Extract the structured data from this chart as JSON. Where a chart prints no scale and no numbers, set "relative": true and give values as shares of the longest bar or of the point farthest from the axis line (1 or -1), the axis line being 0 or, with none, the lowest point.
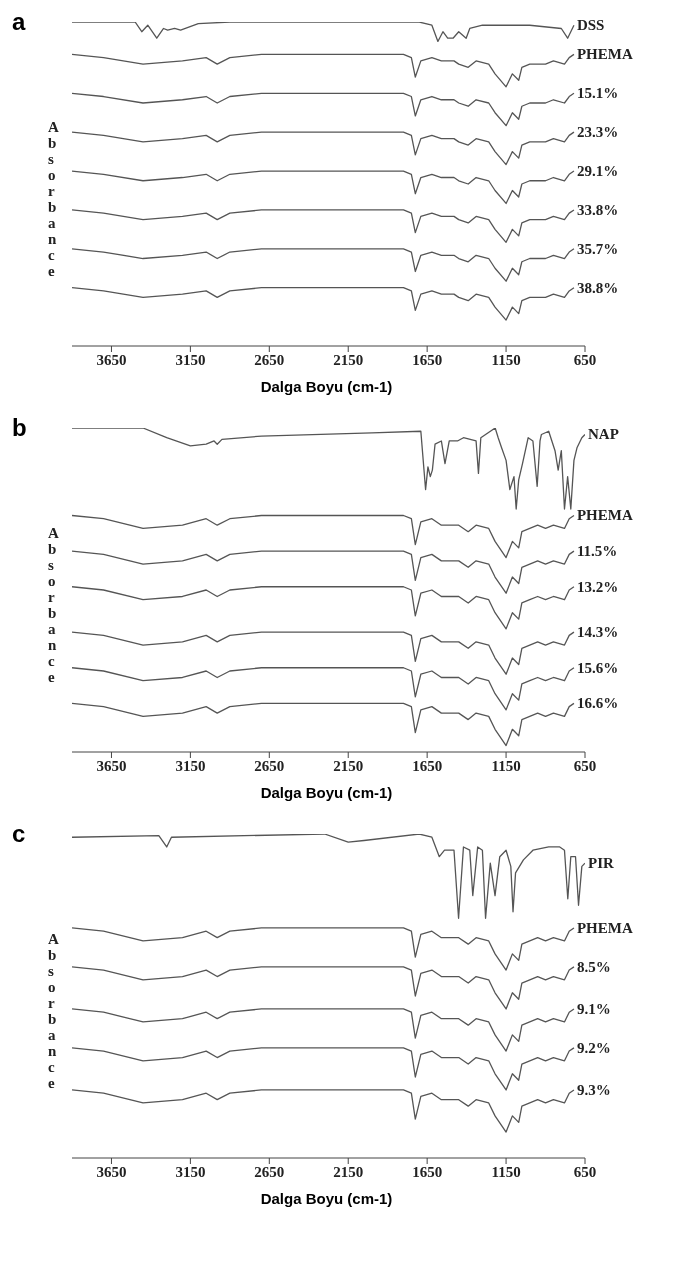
{
  "chart_data": [
    {
      "type": "line",
      "title": "a",
      "xlabel": "Dalga Boyu (cm-1)",
      "ylabel": "Absorbance",
      "relative": true,
      "xlim": [
        3900,
        650
      ],
      "xticks": [
        3650,
        3150,
        2650,
        2150,
        1650,
        1150,
        650
      ],
      "series": [
        {
          "name": "DSS",
          "color": "#555555",
          "x": [
            3900,
            3500,
            3458,
            3420,
            3363,
            3320,
            3294,
            3250,
            3212,
            3100,
            2900,
            1700,
            1620,
            1582,
            1550,
            1520,
            1486,
            1450,
            1403,
            1380,
            1300,
            1000,
            800,
            760,
            740,
            720
          ],
          "values": [
            1,
            1,
            0.97,
            0.99,
            0.95,
            0.98,
            0.975,
            0.98,
            0.975,
            0.995,
            1,
            1,
            0.99,
            0.94,
            0.97,
            0.95,
            0.95,
            0.97,
            0.95,
            0.98,
            0.99,
            0.99,
            0.98,
            0.95,
            0.97,
            0.99
          ]
        },
        {
          "name": "PHEMA",
          "color": "#555555",
          "x": [
            3900,
            3700,
            3450,
            3200,
            3050,
            2980,
            2900,
            2700,
            2200,
            1800,
            1750,
            1725,
            1690,
            1620,
            1560,
            1480,
            1450,
            1390,
            1340,
            1260,
            1220,
            1150,
            1110,
            1070,
            1050,
            1000,
            950,
            900,
            850,
            780,
            750,
            720
          ],
          "values": [
            0.9,
            0.89,
            0.87,
            0.88,
            0.89,
            0.87,
            0.89,
            0.9,
            0.9,
            0.9,
            0.89,
            0.83,
            0.88,
            0.89,
            0.88,
            0.88,
            0.87,
            0.86,
            0.88,
            0.87,
            0.84,
            0.8,
            0.84,
            0.82,
            0.86,
            0.87,
            0.87,
            0.87,
            0.88,
            0.87,
            0.89,
            0.9
          ]
        },
        {
          "name": "15.1%",
          "color": "#555555",
          "x": [
            3900,
            3700,
            3450,
            3200,
            3050,
            2980,
            2900,
            2700,
            2200,
            1800,
            1750,
            1725,
            1690,
            1620,
            1560,
            1480,
            1450,
            1390,
            1340,
            1260,
            1220,
            1150,
            1110,
            1070,
            1050,
            1000,
            950,
            900,
            850,
            780,
            750,
            720
          ],
          "values": [
            0.78,
            0.77,
            0.75,
            0.76,
            0.77,
            0.75,
            0.77,
            0.78,
            0.78,
            0.78,
            0.77,
            0.71,
            0.76,
            0.77,
            0.76,
            0.76,
            0.75,
            0.74,
            0.76,
            0.75,
            0.72,
            0.68,
            0.72,
            0.7,
            0.74,
            0.75,
            0.75,
            0.75,
            0.76,
            0.75,
            0.77,
            0.78
          ]
        },
        {
          "name": "23.3%",
          "color": "#555555",
          "x": [
            3900,
            3700,
            3450,
            3200,
            3050,
            2980,
            2900,
            2700,
            2200,
            1800,
            1750,
            1725,
            1690,
            1620,
            1560,
            1480,
            1450,
            1390,
            1340,
            1260,
            1220,
            1150,
            1110,
            1070,
            1050,
            1000,
            950,
            900,
            850,
            780,
            750,
            720
          ],
          "values": [
            0.66,
            0.65,
            0.63,
            0.64,
            0.65,
            0.63,
            0.65,
            0.66,
            0.66,
            0.66,
            0.65,
            0.59,
            0.64,
            0.65,
            0.64,
            0.64,
            0.63,
            0.62,
            0.64,
            0.63,
            0.6,
            0.56,
            0.6,
            0.58,
            0.62,
            0.63,
            0.63,
            0.63,
            0.64,
            0.63,
            0.65,
            0.66
          ]
        },
        {
          "name": "29.1%",
          "color": "#555555",
          "x": [
            3900,
            3700,
            3450,
            3200,
            3050,
            2980,
            2900,
            2700,
            2200,
            1800,
            1750,
            1725,
            1690,
            1620,
            1560,
            1480,
            1450,
            1390,
            1340,
            1260,
            1220,
            1150,
            1110,
            1070,
            1050,
            1000,
            950,
            900,
            850,
            780,
            750,
            720
          ],
          "values": [
            0.54,
            0.53,
            0.51,
            0.52,
            0.53,
            0.51,
            0.53,
            0.54,
            0.54,
            0.54,
            0.53,
            0.47,
            0.52,
            0.53,
            0.52,
            0.52,
            0.51,
            0.5,
            0.52,
            0.51,
            0.48,
            0.44,
            0.48,
            0.46,
            0.5,
            0.51,
            0.51,
            0.51,
            0.52,
            0.51,
            0.53,
            0.54
          ]
        },
        {
          "name": "33.8%",
          "color": "#555555",
          "x": [
            3900,
            3700,
            3450,
            3200,
            3050,
            2980,
            2900,
            2700,
            2200,
            1800,
            1750,
            1725,
            1690,
            1620,
            1560,
            1480,
            1450,
            1390,
            1340,
            1260,
            1220,
            1150,
            1110,
            1070,
            1050,
            1000,
            950,
            900,
            850,
            780,
            750,
            720
          ],
          "values": [
            0.42,
            0.41,
            0.39,
            0.4,
            0.41,
            0.39,
            0.41,
            0.42,
            0.42,
            0.42,
            0.41,
            0.35,
            0.4,
            0.41,
            0.4,
            0.4,
            0.39,
            0.38,
            0.4,
            0.39,
            0.36,
            0.32,
            0.36,
            0.34,
            0.38,
            0.39,
            0.39,
            0.39,
            0.4,
            0.39,
            0.41,
            0.42
          ]
        },
        {
          "name": "35.7%",
          "color": "#555555",
          "x": [
            3900,
            3700,
            3450,
            3200,
            3050,
            2980,
            2900,
            2700,
            2200,
            1800,
            1750,
            1725,
            1690,
            1620,
            1560,
            1480,
            1450,
            1390,
            1340,
            1260,
            1220,
            1150,
            1110,
            1070,
            1050,
            1000,
            950,
            900,
            850,
            780,
            750,
            720
          ],
          "values": [
            0.3,
            0.29,
            0.27,
            0.28,
            0.29,
            0.27,
            0.29,
            0.3,
            0.3,
            0.3,
            0.29,
            0.23,
            0.28,
            0.29,
            0.28,
            0.28,
            0.27,
            0.26,
            0.28,
            0.27,
            0.24,
            0.2,
            0.24,
            0.22,
            0.26,
            0.27,
            0.27,
            0.27,
            0.28,
            0.27,
            0.29,
            0.3
          ]
        },
        {
          "name": "38.8%",
          "color": "#555555",
          "x": [
            3900,
            3700,
            3450,
            3200,
            3050,
            2980,
            2900,
            2700,
            2200,
            1800,
            1750,
            1725,
            1690,
            1620,
            1560,
            1480,
            1450,
            1390,
            1340,
            1260,
            1220,
            1150,
            1110,
            1070,
            1050,
            1000,
            950,
            900,
            850,
            780,
            750,
            720
          ],
          "values": [
            0.18,
            0.17,
            0.15,
            0.16,
            0.17,
            0.15,
            0.17,
            0.18,
            0.18,
            0.18,
            0.17,
            0.11,
            0.16,
            0.17,
            0.16,
            0.16,
            0.15,
            0.14,
            0.16,
            0.15,
            0.12,
            0.08,
            0.12,
            0.1,
            0.14,
            0.15,
            0.15,
            0.15,
            0.16,
            0.15,
            0.17,
            0.18
          ]
        }
      ]
    },
    {
      "type": "line",
      "title": "b",
      "xlabel": "Dalga Boyu (cm-1)",
      "ylabel": "Absorbance",
      "relative": true,
      "xlim": [
        3900,
        650
      ],
      "xticks": [
        3650,
        3150,
        2650,
        2150,
        1650,
        1150,
        650
      ],
      "series": [
        {
          "name": "NAP",
          "color": "#555555",
          "x": [
            3900,
            3450,
            3300,
            3150,
            3050,
            3000,
            2980,
            2950,
            2700,
            2000,
            1690,
            1660,
            1645,
            1630,
            1617,
            1600,
            1560,
            1537,
            1510,
            1458,
            1420,
            1340,
            1325,
            1310,
            1219,
            1200,
            1179,
            1150,
            1126,
            1100,
            1086,
            1070,
            1046,
            1010,
            980,
            953,
            935,
            926,
            880,
            840,
            820,
            800,
            780,
            760,
            740,
            720,
            700,
            670,
            650
          ],
          "values": [
            1,
            1,
            0.97,
            0.945,
            0.95,
            0.96,
            0.95,
            0.965,
            0.975,
            0.985,
            0.99,
            0.81,
            0.88,
            0.85,
            0.87,
            0.95,
            0.96,
            0.89,
            0.96,
            0.96,
            0.97,
            0.96,
            0.86,
            0.97,
            1,
            0.97,
            0.94,
            0.9,
            0.81,
            0.85,
            0.75,
            0.84,
            0.89,
            0.97,
            0.96,
            0.82,
            0.96,
            0.98,
            0.99,
            0.93,
            0.87,
            0.93,
            0.75,
            0.85,
            0.75,
            0.9,
            0.94,
            0.97,
            0.98
          ]
        },
        {
          "name": "PHEMA",
          "color": "#555555",
          "x": [
            3900,
            3700,
            3450,
            3200,
            3050,
            2980,
            2900,
            2700,
            2200,
            1800,
            1750,
            1725,
            1690,
            1620,
            1560,
            1480,
            1450,
            1390,
            1340,
            1260,
            1220,
            1150,
            1110,
            1070,
            1050,
            1000,
            950,
            900,
            850,
            780,
            750,
            720
          ],
          "values": [
            0.73,
            0.72,
            0.69,
            0.7,
            0.72,
            0.7,
            0.72,
            0.73,
            0.73,
            0.73,
            0.72,
            0.64,
            0.71,
            0.72,
            0.7,
            0.7,
            0.7,
            0.68,
            0.7,
            0.69,
            0.65,
            0.6,
            0.65,
            0.63,
            0.68,
            0.69,
            0.7,
            0.69,
            0.7,
            0.69,
            0.72,
            0.73
          ]
        },
        {
          "name": "11.5%",
          "color": "#555555",
          "x": [
            3900,
            3700,
            3450,
            3200,
            3050,
            2980,
            2900,
            2700,
            2200,
            1800,
            1750,
            1725,
            1690,
            1620,
            1560,
            1480,
            1450,
            1390,
            1340,
            1260,
            1220,
            1150,
            1110,
            1070,
            1050,
            1000,
            950,
            900,
            850,
            780,
            750,
            720
          ],
          "values": [
            0.62,
            0.61,
            0.58,
            0.59,
            0.61,
            0.59,
            0.61,
            0.62,
            0.62,
            0.62,
            0.61,
            0.53,
            0.6,
            0.61,
            0.59,
            0.59,
            0.59,
            0.57,
            0.59,
            0.58,
            0.54,
            0.49,
            0.54,
            0.52,
            0.57,
            0.58,
            0.59,
            0.58,
            0.59,
            0.58,
            0.61,
            0.62
          ]
        },
        {
          "name": "13.2%",
          "color": "#555555",
          "x": [
            3900,
            3700,
            3450,
            3200,
            3050,
            2980,
            2900,
            2700,
            2200,
            1800,
            1750,
            1725,
            1690,
            1620,
            1560,
            1480,
            1450,
            1390,
            1340,
            1260,
            1220,
            1150,
            1110,
            1070,
            1050,
            1000,
            950,
            900,
            850,
            780,
            750,
            720
          ],
          "values": [
            0.51,
            0.5,
            0.47,
            0.48,
            0.5,
            0.48,
            0.5,
            0.51,
            0.51,
            0.51,
            0.5,
            0.42,
            0.49,
            0.5,
            0.48,
            0.48,
            0.48,
            0.46,
            0.48,
            0.47,
            0.43,
            0.38,
            0.43,
            0.41,
            0.46,
            0.47,
            0.48,
            0.47,
            0.48,
            0.47,
            0.5,
            0.51
          ]
        },
        {
          "name": "14.3%",
          "color": "#555555",
          "x": [
            3900,
            3700,
            3450,
            3200,
            3050,
            2980,
            2900,
            2700,
            2200,
            1800,
            1750,
            1725,
            1690,
            1620,
            1560,
            1480,
            1450,
            1390,
            1340,
            1260,
            1220,
            1150,
            1110,
            1070,
            1050,
            1000,
            950,
            900,
            850,
            780,
            750,
            720
          ],
          "values": [
            0.37,
            0.36,
            0.33,
            0.34,
            0.36,
            0.34,
            0.36,
            0.37,
            0.37,
            0.37,
            0.36,
            0.28,
            0.35,
            0.36,
            0.34,
            0.34,
            0.34,
            0.32,
            0.34,
            0.33,
            0.29,
            0.24,
            0.29,
            0.27,
            0.32,
            0.33,
            0.34,
            0.33,
            0.34,
            0.33,
            0.36,
            0.37
          ]
        },
        {
          "name": "15.6%",
          "color": "#555555",
          "x": [
            3900,
            3700,
            3450,
            3200,
            3050,
            2980,
            2900,
            2700,
            2200,
            1800,
            1750,
            1725,
            1690,
            1620,
            1560,
            1480,
            1450,
            1390,
            1340,
            1260,
            1220,
            1150,
            1110,
            1070,
            1050,
            1000,
            950,
            900,
            850,
            780,
            750,
            720
          ],
          "values": [
            0.26,
            0.25,
            0.22,
            0.23,
            0.25,
            0.23,
            0.25,
            0.26,
            0.26,
            0.26,
            0.25,
            0.17,
            0.24,
            0.25,
            0.23,
            0.23,
            0.23,
            0.21,
            0.23,
            0.22,
            0.18,
            0.13,
            0.18,
            0.16,
            0.21,
            0.22,
            0.23,
            0.22,
            0.23,
            0.22,
            0.25,
            0.26
          ]
        },
        {
          "name": "16.6%",
          "color": "#555555",
          "x": [
            3900,
            3700,
            3450,
            3200,
            3050,
            2980,
            2900,
            2700,
            2200,
            1800,
            1750,
            1725,
            1690,
            1620,
            1560,
            1480,
            1450,
            1390,
            1340,
            1260,
            1220,
            1150,
            1110,
            1070,
            1050,
            1000,
            950,
            900,
            850,
            780,
            750,
            720
          ],
          "values": [
            0.15,
            0.14,
            0.11,
            0.12,
            0.14,
            0.12,
            0.14,
            0.15,
            0.15,
            0.15,
            0.14,
            0.06,
            0.13,
            0.14,
            0.12,
            0.12,
            0.12,
            0.1,
            0.12,
            0.11,
            0.07,
            0.02,
            0.07,
            0.05,
            0.1,
            0.11,
            0.12,
            0.11,
            0.12,
            0.11,
            0.14,
            0.15
          ]
        }
      ]
    },
    {
      "type": "line",
      "title": "c",
      "xlabel": "Dalga Boyu (cm-1)",
      "ylabel": "Absorbance",
      "relative": true,
      "xlim": [
        3900,
        650
      ],
      "xticks": [
        3650,
        3150,
        2650,
        2150,
        1650,
        1150,
        650
      ],
      "series": [
        {
          "name": "PIR",
          "color": "#555555",
          "x": [
            3900,
            3350,
            3300,
            3270,
            2300,
            2150,
            2050,
            1700,
            1620,
            1573,
            1540,
            1519,
            1480,
            1451,
            1420,
            1380,
            1361,
            1330,
            1300,
            1280,
            1250,
            1220,
            1190,
            1150,
            1120,
            1106,
            1090,
            1040,
            980,
            880,
            810,
            780,
            759,
            740,
            710,
            691,
            670,
            650
          ],
          "values": [
            0.99,
            0.995,
            0.96,
            0.99,
            1,
            0.975,
            0.98,
            1,
            0.99,
            0.93,
            0.95,
            0.95,
            0.95,
            0.74,
            0.96,
            0.95,
            0.81,
            0.96,
            0.95,
            0.74,
            0.91,
            0.81,
            0.93,
            0.95,
            0.9,
            0.76,
            0.88,
            0.92,
            0.95,
            0.96,
            0.96,
            0.95,
            0.8,
            0.93,
            0.93,
            0.78,
            0.9,
            0.91
          ]
        },
        {
          "name": "PHEMA",
          "color": "#555555",
          "x": [
            3900,
            3700,
            3450,
            3200,
            3050,
            2980,
            2900,
            2700,
            2200,
            1800,
            1750,
            1725,
            1690,
            1620,
            1560,
            1480,
            1450,
            1390,
            1340,
            1260,
            1220,
            1150,
            1110,
            1070,
            1050,
            1000,
            950,
            900,
            850,
            780,
            750,
            720
          ],
          "values": [
            0.71,
            0.7,
            0.67,
            0.68,
            0.7,
            0.68,
            0.7,
            0.71,
            0.71,
            0.71,
            0.7,
            0.62,
            0.69,
            0.7,
            0.68,
            0.68,
            0.68,
            0.66,
            0.68,
            0.67,
            0.63,
            0.58,
            0.63,
            0.61,
            0.66,
            0.67,
            0.68,
            0.67,
            0.68,
            0.67,
            0.7,
            0.71
          ]
        },
        {
          "name": "8.5%",
          "color": "#555555",
          "x": [
            3900,
            3700,
            3450,
            3200,
            3050,
            2980,
            2900,
            2700,
            2200,
            1800,
            1750,
            1725,
            1690,
            1620,
            1560,
            1480,
            1450,
            1390,
            1340,
            1260,
            1220,
            1150,
            1110,
            1070,
            1050,
            1000,
            950,
            900,
            850,
            780,
            750,
            720
          ],
          "values": [
            0.59,
            0.58,
            0.55,
            0.56,
            0.58,
            0.56,
            0.58,
            0.59,
            0.59,
            0.59,
            0.58,
            0.5,
            0.57,
            0.58,
            0.56,
            0.56,
            0.56,
            0.54,
            0.56,
            0.55,
            0.51,
            0.46,
            0.51,
            0.49,
            0.54,
            0.55,
            0.56,
            0.55,
            0.56,
            0.55,
            0.58,
            0.59
          ]
        },
        {
          "name": "9.1%",
          "color": "#555555",
          "x": [
            3900,
            3700,
            3450,
            3200,
            3050,
            2980,
            2900,
            2700,
            2200,
            1800,
            1750,
            1725,
            1690,
            1620,
            1560,
            1480,
            1450,
            1390,
            1340,
            1260,
            1220,
            1150,
            1110,
            1070,
            1050,
            1000,
            950,
            900,
            850,
            780,
            750,
            720
          ],
          "values": [
            0.46,
            0.45,
            0.42,
            0.43,
            0.45,
            0.43,
            0.45,
            0.46,
            0.46,
            0.46,
            0.45,
            0.37,
            0.44,
            0.45,
            0.43,
            0.43,
            0.43,
            0.41,
            0.43,
            0.42,
            0.38,
            0.33,
            0.38,
            0.36,
            0.41,
            0.42,
            0.43,
            0.42,
            0.43,
            0.42,
            0.45,
            0.46
          ]
        },
        {
          "name": "9.2%",
          "color": "#555555",
          "x": [
            3900,
            3700,
            3450,
            3200,
            3050,
            2980,
            2900,
            2700,
            2200,
            1800,
            1750,
            1725,
            1690,
            1620,
            1560,
            1480,
            1450,
            1390,
            1340,
            1260,
            1220,
            1150,
            1110,
            1070,
            1050,
            1000,
            950,
            900,
            850,
            780,
            750,
            720
          ],
          "values": [
            0.34,
            0.33,
            0.3,
            0.31,
            0.33,
            0.31,
            0.33,
            0.34,
            0.34,
            0.34,
            0.33,
            0.25,
            0.32,
            0.33,
            0.31,
            0.31,
            0.31,
            0.29,
            0.31,
            0.3,
            0.26,
            0.21,
            0.26,
            0.24,
            0.29,
            0.3,
            0.31,
            0.3,
            0.31,
            0.3,
            0.33,
            0.34
          ]
        },
        {
          "name": "9.3%",
          "color": "#555555",
          "x": [
            3900,
            3700,
            3450,
            3200,
            3050,
            2980,
            2900,
            2700,
            2200,
            1800,
            1750,
            1725,
            1690,
            1620,
            1560,
            1480,
            1450,
            1390,
            1340,
            1260,
            1220,
            1150,
            1110,
            1070,
            1050,
            1000,
            950,
            900,
            850,
            780,
            750,
            720
          ],
          "values": [
            0.21,
            0.2,
            0.17,
            0.18,
            0.2,
            0.18,
            0.2,
            0.21,
            0.21,
            0.21,
            0.2,
            0.12,
            0.19,
            0.2,
            0.18,
            0.18,
            0.18,
            0.16,
            0.18,
            0.17,
            0.13,
            0.08,
            0.13,
            0.11,
            0.16,
            0.17,
            0.18,
            0.17,
            0.18,
            0.17,
            0.2,
            0.21
          ]
        }
      ]
    }
  ]
}
